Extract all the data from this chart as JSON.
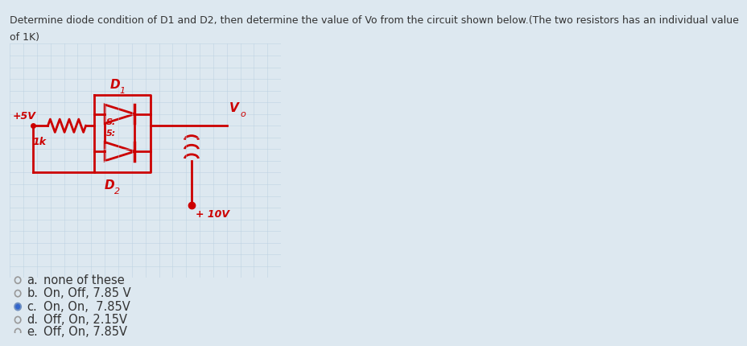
{
  "title_line1": "Determine diode condition of D1 and D2, then determine the value of Vo from the circuit shown below.(The two resistors has an individual value",
  "title_line2": "of 1K)",
  "bg_color": "#dde8f0",
  "grid_bg": "#f5e8cc",
  "grid_line_color": "#b8cfe0",
  "circuit_color": "#cc0000",
  "options": [
    {
      "label": "a.",
      "text": "none of these",
      "selected": false
    },
    {
      "label": "b.",
      "text": "On, Off, 7.85 V",
      "selected": false
    },
    {
      "label": "c.",
      "text": "On, On,  7.85V",
      "selected": true
    },
    {
      "label": "d.",
      "text": "Off, On, 2.15V",
      "selected": false
    },
    {
      "label": "e.",
      "text": "Off, On, 7.85V",
      "selected": false
    }
  ],
  "radio_border_color": "#7090c0",
  "selected_fill": "#3366cc",
  "text_color": "#333333",
  "title_fontsize": 9.0,
  "option_fontsize": 10.5,
  "sidebar_color": "#2244aa"
}
